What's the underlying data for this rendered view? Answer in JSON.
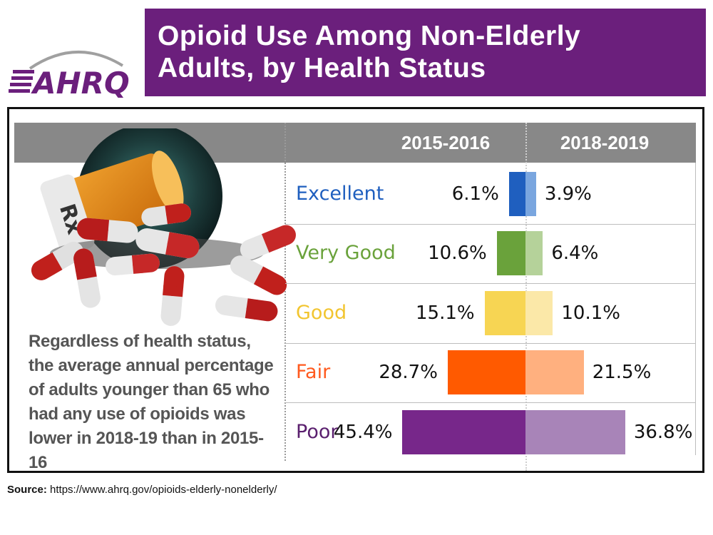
{
  "logo_text": "AHRQ",
  "title_line1": "Opioid Use Among Non-Elderly",
  "title_line2": "Adults, by Health Status",
  "note_lines": [
    "Regardless of health status,",
    "the average annual percentage",
    "of adults younger than 65 who",
    "had any use of opioids was",
    "lower in 2018-19 than in 2015-16"
  ],
  "source_label": "Source:",
  "source_url": "https://www.ahrq.gov/opioids-elderly-nonelderly/",
  "image_alt": "Rx pill bottle with spilled capsules",
  "chart_data": {
    "type": "bar",
    "title": "Opioid Use Among Non-Elderly Adults, by Health Status",
    "categories": [
      "Excellent",
      "Very Good",
      "Good",
      "Fair",
      "Poor"
    ],
    "series": [
      {
        "name": "2015-2016",
        "values": [
          6.1,
          10.6,
          15.1,
          28.7,
          45.4
        ],
        "labels": [
          "6.1%",
          "10.6%",
          "15.1%",
          "28.7%",
          "45.4%"
        ]
      },
      {
        "name": "2018-2019",
        "values": [
          3.9,
          6.4,
          10.1,
          21.5,
          36.8
        ],
        "labels": [
          "3.9%",
          "6.4%",
          "10.1%",
          "21.5%",
          "36.8%"
        ]
      }
    ],
    "orientation": "horizontal, mirrored: 2015-2016 extends left, 2018-2019 extends right",
    "unit": "%",
    "colors": {
      "Excellent": [
        "#1f5fbf",
        "#7aa6df"
      ],
      "Very Good": [
        "#6aa23b",
        "#b5d29a"
      ],
      "Good": [
        "#f7d553",
        "#fbe8a8"
      ],
      "Fair": [
        "#ff5a00",
        "#ffb07f"
      ],
      "Poor": [
        "#77278a",
        "#a884b8"
      ]
    },
    "label_colors": {
      "Excellent": "#1f5fbf",
      "Very Good": "#6aa23b",
      "Good": "#f2c530",
      "Fair": "#ff5a1f",
      "Poor": "#5a1f6e"
    }
  }
}
